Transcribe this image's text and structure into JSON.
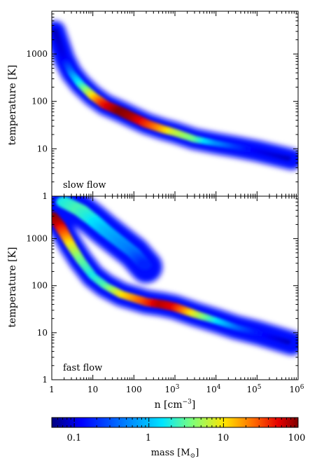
{
  "chart_data": [
    {
      "type": "heatmap",
      "panel_label": "slow flow",
      "ylabel": "temperature [K]",
      "xlabel": "",
      "xscale": "log",
      "yscale": "log",
      "xlim": [
        1,
        1000000
      ],
      "ylim": [
        1,
        8000
      ],
      "yticks": [
        {
          "value": 1,
          "label": "1"
        },
        {
          "value": 10,
          "label": "10"
        },
        {
          "value": 100,
          "label": "100"
        },
        {
          "value": 1000,
          "label": "1000"
        }
      ],
      "ridge": [
        {
          "n": 1.2,
          "T": 3000,
          "mass": 0.08
        },
        {
          "n": 2,
          "T": 800,
          "mass": 0.12
        },
        {
          "n": 3,
          "T": 400,
          "mass": 0.3
        },
        {
          "n": 5,
          "T": 230,
          "mass": 1
        },
        {
          "n": 10,
          "T": 130,
          "mass": 5
        },
        {
          "n": 20,
          "T": 85,
          "mass": 30
        },
        {
          "n": 50,
          "T": 60,
          "mass": 100
        },
        {
          "n": 100,
          "T": 45,
          "mass": 70
        },
        {
          "n": 200,
          "T": 34,
          "mass": 30
        },
        {
          "n": 500,
          "T": 26,
          "mass": 10
        },
        {
          "n": 1000,
          "T": 22,
          "mass": 4
        },
        {
          "n": 3000,
          "T": 16,
          "mass": 2
        },
        {
          "n": 10000,
          "T": 13,
          "mass": 0.4
        },
        {
          "n": 30000,
          "T": 11,
          "mass": 0.2
        },
        {
          "n": 100000,
          "T": 9,
          "mass": 0.12
        },
        {
          "n": 700000,
          "T": 6,
          "mass": 0.08
        }
      ]
    },
    {
      "type": "heatmap",
      "panel_label": "fast flow",
      "ylabel": "temperature [K]",
      "xlabel": "n [cm^-3]",
      "xscale": "log",
      "yscale": "log",
      "xlim": [
        1,
        1000000
      ],
      "ylim": [
        1,
        8000
      ],
      "xticks": [
        {
          "value": 1,
          "label": "1"
        },
        {
          "value": 10,
          "label": "10"
        },
        {
          "value": 100,
          "label": "100"
        },
        {
          "value": 1000,
          "label": "10^3"
        },
        {
          "value": 10000,
          "label": "10^4"
        },
        {
          "value": 100000,
          "label": "10^5"
        },
        {
          "value": 1000000,
          "label": "10^6"
        }
      ],
      "yticks": [
        {
          "value": 1,
          "label": "1"
        },
        {
          "value": 10,
          "label": "10"
        },
        {
          "value": 100,
          "label": "100"
        },
        {
          "value": 1000,
          "label": "1000"
        }
      ],
      "ridge": [
        {
          "n": 1,
          "T": 3000,
          "mass": 100
        },
        {
          "n": 1.5,
          "T": 2000,
          "mass": 60
        },
        {
          "n": 2,
          "T": 1300,
          "mass": 20
        },
        {
          "n": 3,
          "T": 700,
          "mass": 5
        },
        {
          "n": 5,
          "T": 350,
          "mass": 2
        },
        {
          "n": 10,
          "T": 160,
          "mass": 1
        },
        {
          "n": 20,
          "T": 100,
          "mass": 1.5
        },
        {
          "n": 50,
          "T": 65,
          "mass": 5
        },
        {
          "n": 200,
          "T": 45,
          "mass": 20
        },
        {
          "n": 500,
          "T": 40,
          "mass": 60
        },
        {
          "n": 1000,
          "T": 35,
          "mass": 40
        },
        {
          "n": 3000,
          "T": 25,
          "mass": 5
        },
        {
          "n": 10000,
          "T": 18,
          "mass": 1
        },
        {
          "n": 30000,
          "T": 13,
          "mass": 0.3
        },
        {
          "n": 100000,
          "T": 10,
          "mass": 0.15
        },
        {
          "n": 700000,
          "T": 6,
          "mass": 0.08
        }
      ],
      "hot_plume": [
        {
          "n": 2,
          "T": 6000,
          "mass": 1
        },
        {
          "n": 5,
          "T": 4000,
          "mass": 1.5
        },
        {
          "n": 10,
          "T": 2500,
          "mass": 1
        },
        {
          "n": 20,
          "T": 1500,
          "mass": 0.6
        },
        {
          "n": 50,
          "T": 800,
          "mass": 0.4
        },
        {
          "n": 100,
          "T": 500,
          "mass": 0.3
        },
        {
          "n": 200,
          "T": 250,
          "mass": 0.15
        }
      ]
    }
  ],
  "colorbar": {
    "label": "mass [M_☉]",
    "label_text": "mass [M",
    "label_symbol": "⊙",
    "label_close": "]",
    "scale": "log",
    "range": [
      0.05,
      100
    ],
    "ticks": [
      "0.1",
      "1",
      "10",
      "100"
    ],
    "colormap": [
      "#00007f",
      "#0000ff",
      "#0080ff",
      "#00e5ff",
      "#7dff7a",
      "#ffe500",
      "#ff6a00",
      "#e50000",
      "#7f0000"
    ]
  },
  "labels": {
    "xtick_1": "1",
    "xtick_10": "10",
    "xtick_100": "100",
    "xtick_1e3_base": "10",
    "xtick_1e3_exp": "3",
    "xtick_1e4_base": "10",
    "xtick_1e4_exp": "4",
    "xtick_1e5_base": "10",
    "xtick_1e5_exp": "5",
    "xtick_1e6_base": "10",
    "xtick_1e6_exp": "6",
    "xaxis_prefix": "n  [cm",
    "xaxis_exp": "−3",
    "xaxis_suffix": "]"
  }
}
